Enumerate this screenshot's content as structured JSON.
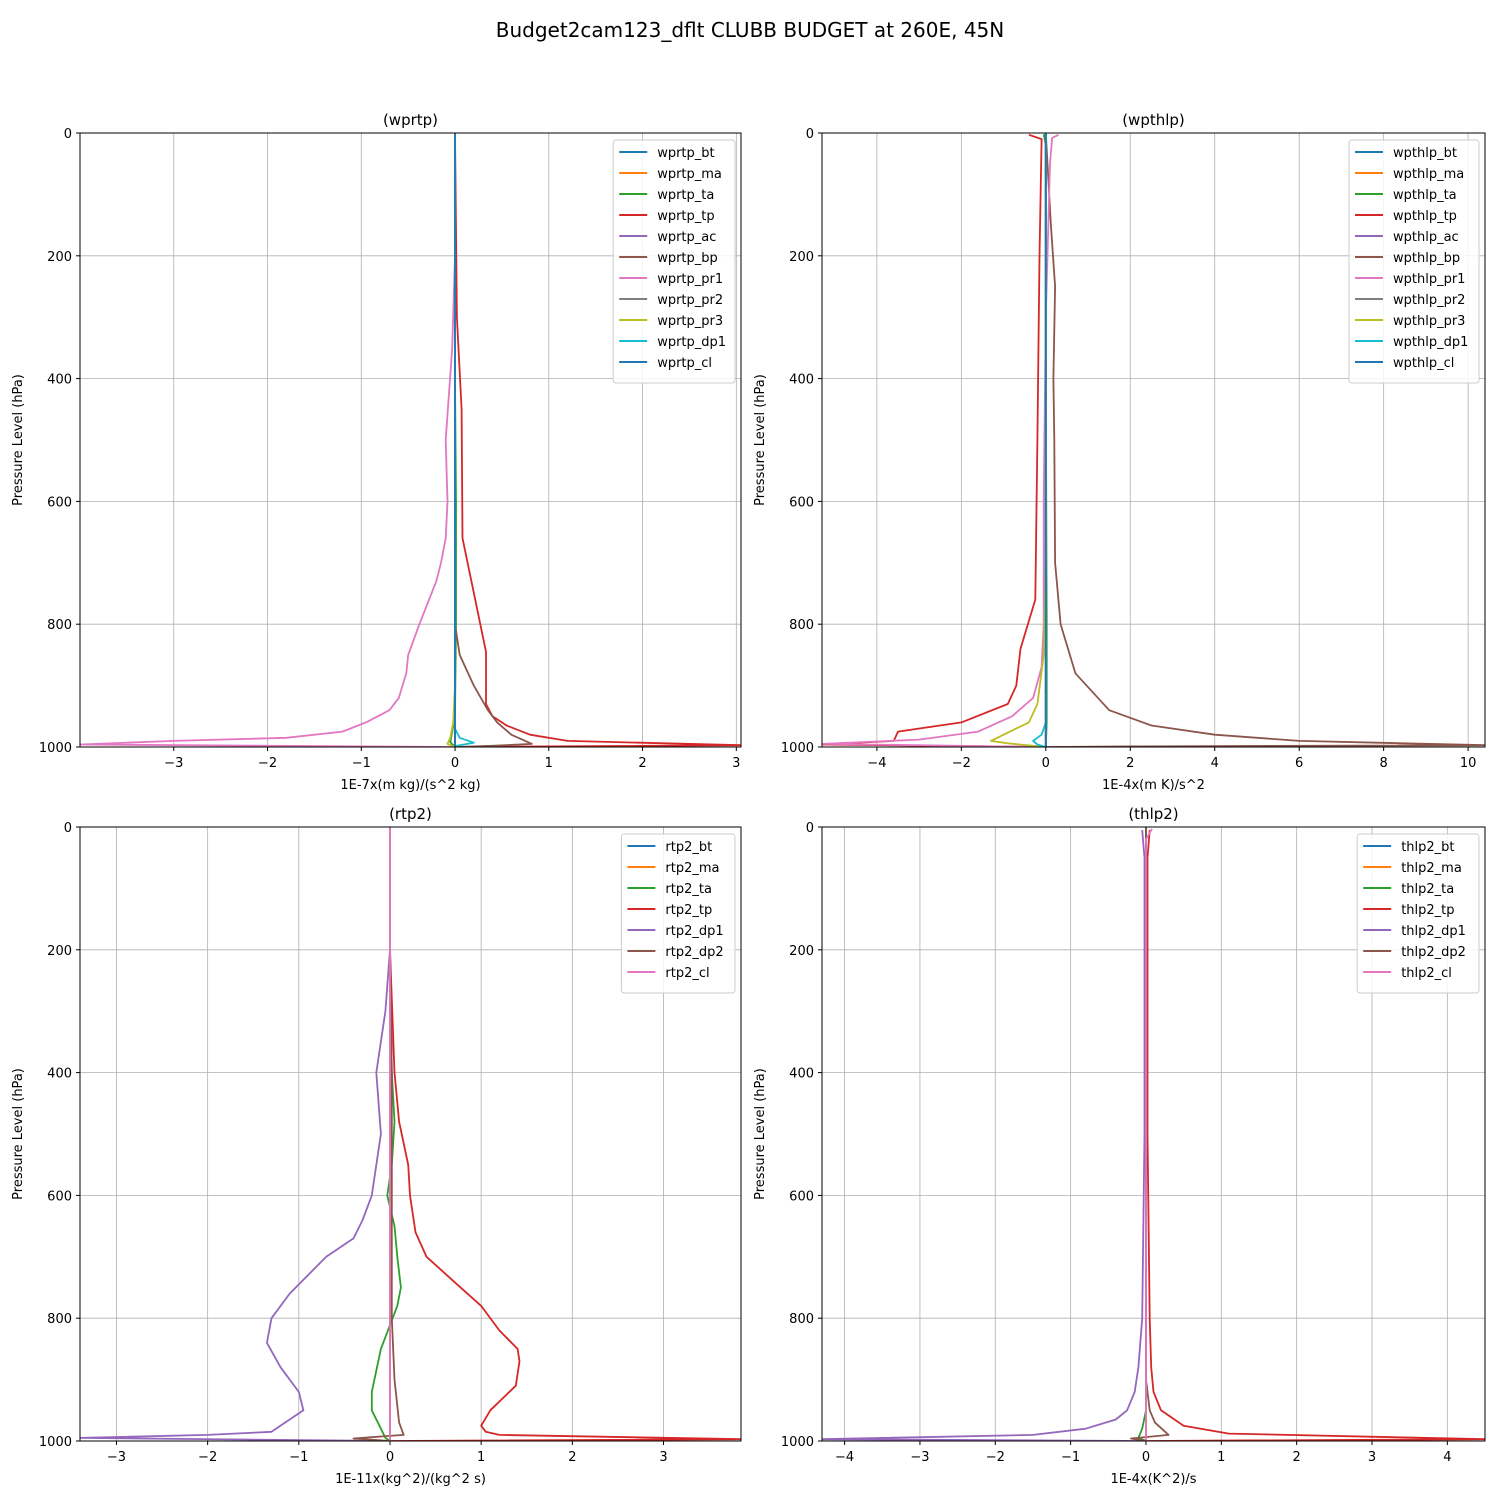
{
  "figure": {
    "title": "Budget2cam123_dflt CLUBB BUDGET at 260E, 45N"
  },
  "colors": [
    "#1f77b4",
    "#ff7f0e",
    "#2ca02c",
    "#d62728",
    "#9467bd",
    "#8c564b",
    "#e377c2",
    "#7f7f7f",
    "#bcbd22",
    "#17becf",
    "#1f77b4"
  ],
  "chart_data": [
    {
      "type": "line",
      "title": "(wprtp)",
      "xlabel": "1E-7x(m kg)/(s^2 kg)",
      "ylabel": "Pressure Level (hPa)",
      "xlim": [
        -4,
        3.05
      ],
      "ylim": [
        1000,
        0
      ],
      "xticks": [
        -3,
        -2,
        -1,
        0,
        1,
        2,
        3
      ],
      "xtick_labels": [
        "−3",
        "−2",
        "−1",
        "0",
        "1",
        "2",
        "3"
      ],
      "yticks": [
        0,
        200,
        400,
        600,
        800,
        1000
      ],
      "ytick_labels": [
        "0",
        "200",
        "400",
        "600",
        "800",
        "1000"
      ],
      "grid": true,
      "legend_loc": "upper right",
      "series": [
        {
          "name": "wprtp_bt",
          "x": [
            0,
            0,
            0
          ],
          "y": [
            0,
            500,
            1000
          ]
        },
        {
          "name": "wprtp_ma",
          "x": [
            0,
            0,
            0
          ],
          "y": [
            0,
            500,
            1000
          ]
        },
        {
          "name": "wprtp_ta",
          "x": [
            0,
            0,
            0.01,
            0.01,
            0,
            -0.05,
            0
          ],
          "y": [
            0,
            400,
            600,
            800,
            950,
            992,
            1000
          ]
        },
        {
          "name": "wprtp_tp",
          "x": [
            0,
            0.02,
            0.07,
            0.08,
            0.33,
            0.33,
            0.4,
            0.55,
            0.8,
            1.2,
            3.05,
            0
          ],
          "y": [
            0,
            300,
            450,
            660,
            845,
            930,
            950,
            965,
            980,
            990,
            997,
            1000
          ]
        },
        {
          "name": "wprtp_ac",
          "x": [
            0,
            0,
            0
          ],
          "y": [
            0,
            500,
            1000
          ]
        },
        {
          "name": "wprtp_bp",
          "x": [
            0,
            0,
            0,
            0.05,
            0.2,
            0.35,
            0.45,
            0.6,
            0.82,
            0.4,
            0
          ],
          "y": [
            0,
            400,
            800,
            850,
            900,
            940,
            960,
            980,
            995,
            998,
            1000
          ]
        },
        {
          "name": "wprtp_pr1",
          "x": [
            0,
            -0.03,
            -0.1,
            -0.08,
            -0.1,
            -0.15,
            -0.2,
            -0.38,
            -0.5,
            -0.52,
            -0.6,
            -0.7,
            -0.95,
            -1.2,
            -1.8,
            -3.0,
            -4.0,
            0
          ],
          "y": [
            200,
            350,
            500,
            600,
            660,
            700,
            730,
            800,
            850,
            880,
            920,
            940,
            960,
            975,
            985,
            990,
            996,
            1000
          ]
        },
        {
          "name": "wprtp_pr2",
          "x": [
            0,
            0,
            0
          ],
          "y": [
            0,
            500,
            1000
          ]
        },
        {
          "name": "wprtp_pr3",
          "x": [
            0,
            0,
            -0.02,
            -0.05,
            -0.08,
            0
          ],
          "y": [
            0,
            900,
            960,
            985,
            995,
            1000
          ]
        },
        {
          "name": "wprtp_dp1",
          "x": [
            0,
            0,
            0.05,
            0.2,
            0.02,
            0
          ],
          "y": [
            0,
            970,
            985,
            993,
            998,
            1000
          ]
        },
        {
          "name": "wprtp_cl",
          "x": [
            0,
            0,
            0
          ],
          "y": [
            0,
            500,
            1000
          ]
        }
      ]
    },
    {
      "type": "line",
      "title": "(wpthlp)",
      "xlabel": "1E-4x(m K)/s^2",
      "ylabel": "Pressure Level (hPa)",
      "xlim": [
        -5.3,
        10.4
      ],
      "ylim": [
        1000,
        0
      ],
      "xticks": [
        -4,
        -2,
        0,
        2,
        4,
        6,
        8,
        10
      ],
      "xtick_labels": [
        "−4",
        "−2",
        "0",
        "2",
        "4",
        "6",
        "8",
        "10"
      ],
      "yticks": [
        0,
        200,
        400,
        600,
        800,
        1000
      ],
      "ytick_labels": [
        "0",
        "200",
        "400",
        "600",
        "800",
        "1000"
      ],
      "grid": true,
      "legend_loc": "upper right",
      "series": [
        {
          "name": "wpthlp_bt",
          "x": [
            0,
            0,
            0
          ],
          "y": [
            0,
            500,
            1000
          ]
        },
        {
          "name": "wpthlp_ma",
          "x": [
            0,
            0,
            0
          ],
          "y": [
            0,
            500,
            1000
          ]
        },
        {
          "name": "wpthlp_ta",
          "x": [
            -0.05,
            0,
            0,
            0.02,
            0.02,
            0
          ],
          "y": [
            2,
            20,
            400,
            800,
            960,
            1000
          ]
        },
        {
          "name": "wpthlp_tp",
          "x": [
            -0.4,
            -0.1,
            -0.15,
            -0.2,
            -0.25,
            -0.6,
            -0.7,
            -0.9,
            -2.0,
            -3.5,
            -3.6,
            -5.3,
            0
          ],
          "y": [
            3,
            10,
            200,
            500,
            760,
            840,
            900,
            930,
            960,
            975,
            990,
            996,
            1000
          ]
        },
        {
          "name": "wpthlp_ac",
          "x": [
            0,
            0,
            0
          ],
          "y": [
            0,
            500,
            1000
          ]
        },
        {
          "name": "wpthlp_bp",
          "x": [
            0,
            0.12,
            0.22,
            0.18,
            0.2,
            0.22,
            0.35,
            0.7,
            1.5,
            2.5,
            4.0,
            6.0,
            10.4,
            2.0,
            0
          ],
          "y": [
            0,
            150,
            250,
            400,
            500,
            700,
            800,
            880,
            940,
            965,
            980,
            990,
            997,
            999,
            1000
          ]
        },
        {
          "name": "wpthlp_pr1",
          "x": [
            0.3,
            0.15,
            0.1,
            0,
            -0.05,
            -0.05,
            -0.1,
            -0.3,
            -0.8,
            -1.6,
            -3.0,
            -5.3,
            0
          ],
          "y": [
            3,
            8,
            50,
            300,
            600,
            800,
            870,
            920,
            950,
            975,
            988,
            995,
            1000
          ]
        },
        {
          "name": "wpthlp_pr2",
          "x": [
            0,
            0,
            0
          ],
          "y": [
            0,
            500,
            1000
          ]
        },
        {
          "name": "wpthlp_pr3",
          "x": [
            0,
            0,
            -0.05,
            -0.2,
            -0.4,
            -1.0,
            -1.3,
            -0.9,
            0
          ],
          "y": [
            0,
            700,
            850,
            930,
            960,
            980,
            990,
            994,
            1000
          ]
        },
        {
          "name": "wpthlp_dp1",
          "x": [
            0,
            0,
            -0.1,
            -0.3,
            -0.2,
            0
          ],
          "y": [
            0,
            960,
            980,
            990,
            996,
            1000
          ]
        },
        {
          "name": "wpthlp_cl",
          "x": [
            0,
            0,
            0,
            0
          ],
          "y": [
            0,
            500,
            960,
            1000
          ]
        }
      ]
    },
    {
      "type": "line",
      "title": "(rtp2)",
      "xlabel": "1E-11x(kg^2)/(kg^2 s)",
      "ylabel": "Pressure Level (hPa)",
      "xlim": [
        -3.4,
        3.85
      ],
      "ylim": [
        1000,
        0
      ],
      "xticks": [
        -3,
        -2,
        -1,
        0,
        1,
        2,
        3
      ],
      "xtick_labels": [
        "−3",
        "−2",
        "−1",
        "0",
        "1",
        "2",
        "3"
      ],
      "yticks": [
        0,
        200,
        400,
        600,
        800,
        1000
      ],
      "ytick_labels": [
        "0",
        "200",
        "400",
        "600",
        "800",
        "1000"
      ],
      "grid": true,
      "legend_loc": "upper right",
      "series": [
        {
          "name": "rtp2_bt",
          "x": [
            0,
            0,
            0
          ],
          "y": [
            0,
            500,
            1000
          ]
        },
        {
          "name": "rtp2_ma",
          "x": [
            0,
            0,
            0
          ],
          "y": [
            0,
            500,
            1000
          ]
        },
        {
          "name": "rtp2_ta",
          "x": [
            0,
            0.02,
            0.05,
            0.02,
            -0.03,
            0.05,
            0.08,
            0.12,
            0.08,
            -0.1,
            -0.2,
            -0.2,
            -0.1,
            -0.05,
            0
          ],
          "y": [
            200,
            400,
            480,
            550,
            600,
            650,
            700,
            750,
            780,
            850,
            920,
            950,
            980,
            995,
            1000
          ]
        },
        {
          "name": "rtp2_tp",
          "x": [
            0,
            0.05,
            0.1,
            0.2,
            0.22,
            0.28,
            0.4,
            0.7,
            1.0,
            1.2,
            1.4,
            1.42,
            1.38,
            1.1,
            1.0,
            1.05,
            1.2,
            3.85,
            0
          ],
          "y": [
            200,
            400,
            480,
            550,
            600,
            660,
            700,
            740,
            780,
            820,
            850,
            870,
            910,
            950,
            975,
            985,
            990,
            997,
            1000
          ]
        },
        {
          "name": "rtp2_dp1",
          "x": [
            0,
            -0.05,
            -0.15,
            -0.1,
            -0.2,
            -0.3,
            -0.4,
            -0.7,
            -1.1,
            -1.3,
            -1.35,
            -1.2,
            -1.0,
            -0.95,
            -1.3,
            -2.0,
            -3.4,
            0
          ],
          "y": [
            200,
            300,
            400,
            500,
            600,
            640,
            670,
            700,
            760,
            800,
            840,
            880,
            920,
            950,
            985,
            990,
            995,
            1000
          ]
        },
        {
          "name": "rtp2_dp2",
          "x": [
            0,
            0.02,
            0.02,
            0.02,
            0.05,
            0.1,
            0.15,
            -0.4,
            0
          ],
          "y": [
            200,
            400,
            600,
            800,
            900,
            970,
            990,
            996,
            1000
          ]
        },
        {
          "name": "rtp2_cl",
          "x": [
            0,
            0,
            0
          ],
          "y": [
            0,
            500,
            1000
          ]
        }
      ]
    },
    {
      "type": "line",
      "title": "(thlp2)",
      "xlabel": "1E-4x(K^2)/s",
      "ylabel": "Pressure Level (hPa)",
      "xlim": [
        -4.3,
        4.5
      ],
      "ylim": [
        1000,
        0
      ],
      "xticks": [
        -4,
        -3,
        -2,
        -1,
        0,
        1,
        2,
        3,
        4
      ],
      "xtick_labels": [
        "−4",
        "−3",
        "−2",
        "−1",
        "0",
        "1",
        "2",
        "3",
        "4"
      ],
      "yticks": [
        0,
        200,
        400,
        600,
        800,
        1000
      ],
      "ytick_labels": [
        "0",
        "200",
        "400",
        "600",
        "800",
        "1000"
      ],
      "grid": true,
      "legend_loc": "upper right",
      "series": [
        {
          "name": "thlp2_bt",
          "x": [
            0,
            0,
            0
          ],
          "y": [
            0,
            500,
            1000
          ]
        },
        {
          "name": "thlp2_ma",
          "x": [
            0,
            0,
            0
          ],
          "y": [
            0,
            500,
            1000
          ]
        },
        {
          "name": "thlp2_ta",
          "x": [
            0,
            0,
            0,
            -0.05,
            -0.1,
            0
          ],
          "y": [
            0,
            500,
            950,
            980,
            995,
            1000
          ]
        },
        {
          "name": "thlp2_tp",
          "x": [
            0.05,
            0.02,
            0.02,
            0.05,
            0.07,
            0.1,
            0.2,
            0.5,
            1.1,
            4.5,
            0
          ],
          "y": [
            5,
            50,
            500,
            800,
            880,
            920,
            950,
            975,
            988,
            997,
            1000
          ]
        },
        {
          "name": "thlp2_dp1",
          "x": [
            -0.05,
            -0.02,
            -0.02,
            -0.05,
            -0.1,
            -0.15,
            -0.25,
            -0.4,
            -0.8,
            -1.5,
            -4.3,
            0
          ],
          "y": [
            5,
            50,
            500,
            800,
            880,
            920,
            950,
            965,
            980,
            990,
            997,
            1000
          ]
        },
        {
          "name": "thlp2_dp2",
          "x": [
            0,
            0,
            0.05,
            0.12,
            0.3,
            -0.2,
            0
          ],
          "y": [
            0,
            900,
            950,
            970,
            990,
            996,
            1000
          ]
        },
        {
          "name": "thlp2_cl",
          "x": [
            0.08,
            0,
            0,
            0
          ],
          "y": [
            3,
            20,
            500,
            1000
          ]
        }
      ]
    }
  ]
}
